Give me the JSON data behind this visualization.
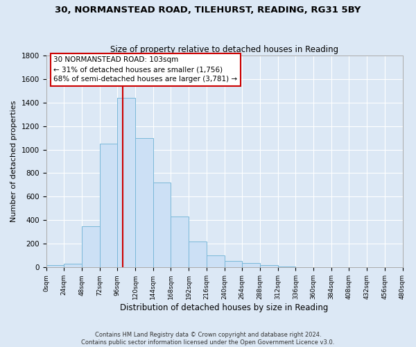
{
  "title1": "30, NORMANSTEAD ROAD, TILEHURST, READING, RG31 5BY",
  "title2": "Size of property relative to detached houses in Reading",
  "xlabel": "Distribution of detached houses by size in Reading",
  "ylabel": "Number of detached properties",
  "footer1": "Contains HM Land Registry data © Crown copyright and database right 2024.",
  "footer2": "Contains public sector information licensed under the Open Government Licence v3.0.",
  "bin_edges": [
    0,
    24,
    48,
    72,
    96,
    120,
    144,
    168,
    192,
    216,
    240,
    264,
    288,
    312,
    336,
    360,
    384,
    408,
    432,
    456,
    480
  ],
  "bar_heights": [
    20,
    30,
    350,
    1050,
    1440,
    1100,
    720,
    430,
    220,
    105,
    57,
    35,
    20,
    8,
    3,
    2,
    1,
    1,
    0,
    0
  ],
  "bar_color": "#cce0f5",
  "bar_edge_color": "#7ab8d9",
  "vline_x": 103,
  "vline_color": "#cc0000",
  "annotation_title": "30 NORMANSTEAD ROAD: 103sqm",
  "annotation_line1": "← 31% of detached houses are smaller (1,756)",
  "annotation_line2": "68% of semi-detached houses are larger (3,781) →",
  "annotation_box_color": "#ffffff",
  "annotation_box_edge": "#cc0000",
  "ylim": [
    0,
    1800
  ],
  "yticks": [
    0,
    200,
    400,
    600,
    800,
    1000,
    1200,
    1400,
    1600,
    1800
  ],
  "xtick_labels": [
    "0sqm",
    "24sqm",
    "48sqm",
    "72sqm",
    "96sqm",
    "120sqm",
    "144sqm",
    "168sqm",
    "192sqm",
    "216sqm",
    "240sqm",
    "264sqm",
    "288sqm",
    "312sqm",
    "336sqm",
    "360sqm",
    "384sqm",
    "408sqm",
    "432sqm",
    "456sqm",
    "480sqm"
  ],
  "background_color": "#dce8f5",
  "grid_color": "#ffffff",
  "title1_fontsize": 9.5,
  "title2_fontsize": 8.5,
  "xlabel_fontsize": 8.5,
  "ylabel_fontsize": 8.0,
  "annotation_fontsize": 7.5,
  "footer_fontsize": 6.0
}
